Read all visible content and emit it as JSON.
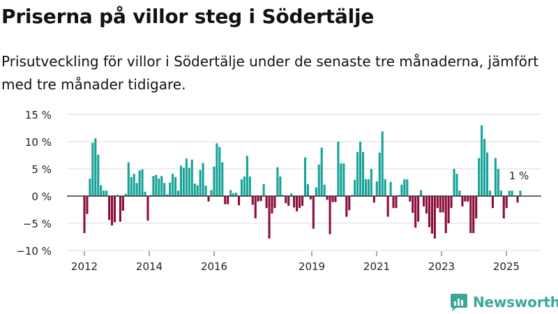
{
  "title": "Priserna på villor steg i Södertälje",
  "subtitle": "Prisutveckling för villor i Södertälje under de senaste tre månaderna, jämfört med tre månader tidigare.",
  "brand": {
    "name": "Newsworthy",
    "color": "#3aa79a"
  },
  "colors": {
    "positive": "#17a398",
    "negative": "#8b0d3a",
    "grid": "#dddddd",
    "zero_line": "#333333"
  },
  "chart_data": {
    "type": "bar",
    "title": "",
    "xlabel": "",
    "ylabel": "",
    "ylim": [
      -10,
      15
    ],
    "y_ticks": [
      {
        "value": 15,
        "label": "15 %"
      },
      {
        "value": 10,
        "label": "10 %"
      },
      {
        "value": 5,
        "label": "5 %"
      },
      {
        "value": 0,
        "label": "0 %"
      },
      {
        "value": -5,
        "label": "−5 %"
      },
      {
        "value": -10,
        "label": "−10 %"
      }
    ],
    "x_ticks": [
      "2012",
      "2014",
      "2016",
      "2019",
      "2021",
      "2023",
      "2025"
    ],
    "grid": true,
    "last_value_label": "1 %",
    "values": [
      -6.8,
      -3.3,
      3.2,
      9.8,
      10.6,
      7.6,
      2.0,
      1.0,
      1.0,
      -4.4,
      -5.4,
      -4.8,
      0.2,
      -4.7,
      -2.7,
      0.4,
      6.2,
      3.5,
      4.1,
      2.4,
      4.7,
      4.9,
      0.8,
      -4.5,
      0.2,
      3.7,
      3.9,
      3.2,
      3.7,
      2.4,
      0.3,
      2.5,
      4.1,
      3.5,
      1.0,
      5.6,
      5.2,
      6.9,
      5.2,
      6.7,
      2.3,
      2.0,
      4.8,
      6.1,
      1.9,
      -1.0,
      1.1,
      5.4,
      9.7,
      9.0,
      6.2,
      -1.5,
      -1.5,
      1.1,
      0.5,
      0.6,
      -1.7,
      3.1,
      3.6,
      7.4,
      3.6,
      -1.6,
      -4.1,
      -1.0,
      -0.9,
      2.2,
      -2.2,
      -7.8,
      -3.2,
      -2.2,
      5.3,
      3.6,
      0.2,
      -1.3,
      -1.8,
      0.5,
      -2.1,
      -2.8,
      -2.2,
      -1.8,
      7.1,
      2.2,
      -0.6,
      -6.0,
      1.6,
      5.8,
      8.9,
      2.1,
      -0.7,
      -7.0,
      -1.1,
      -1.1,
      10.0,
      6.0,
      6.0,
      -3.8,
      -2.6,
      0.2,
      3.0,
      8.1,
      10.0,
      8.1,
      3.1,
      3.1,
      5.0,
      -1.2,
      2.7,
      8.0,
      11.9,
      3.1,
      -3.8,
      2.6,
      -2.2,
      -2.2,
      0.2,
      2.1,
      3.1,
      3.1,
      -1.0,
      -3.1,
      -5.8,
      -4.7,
      1.1,
      -1.9,
      -3.2,
      -5.7,
      -6.9,
      -7.8,
      -2.2,
      -3.0,
      -3.0,
      -6.8,
      -5.0,
      -2.2,
      5.0,
      4.1,
      1.0,
      -1.9,
      -1.0,
      -1.0,
      -6.8,
      -6.8,
      -4.1,
      7.0,
      13.0,
      10.5,
      8.0,
      1.0,
      -2.2,
      7.0,
      5.0,
      1.0,
      -4.1,
      -2.2,
      1.0,
      1.0,
      0.1,
      -1.2,
      1.0
    ]
  }
}
